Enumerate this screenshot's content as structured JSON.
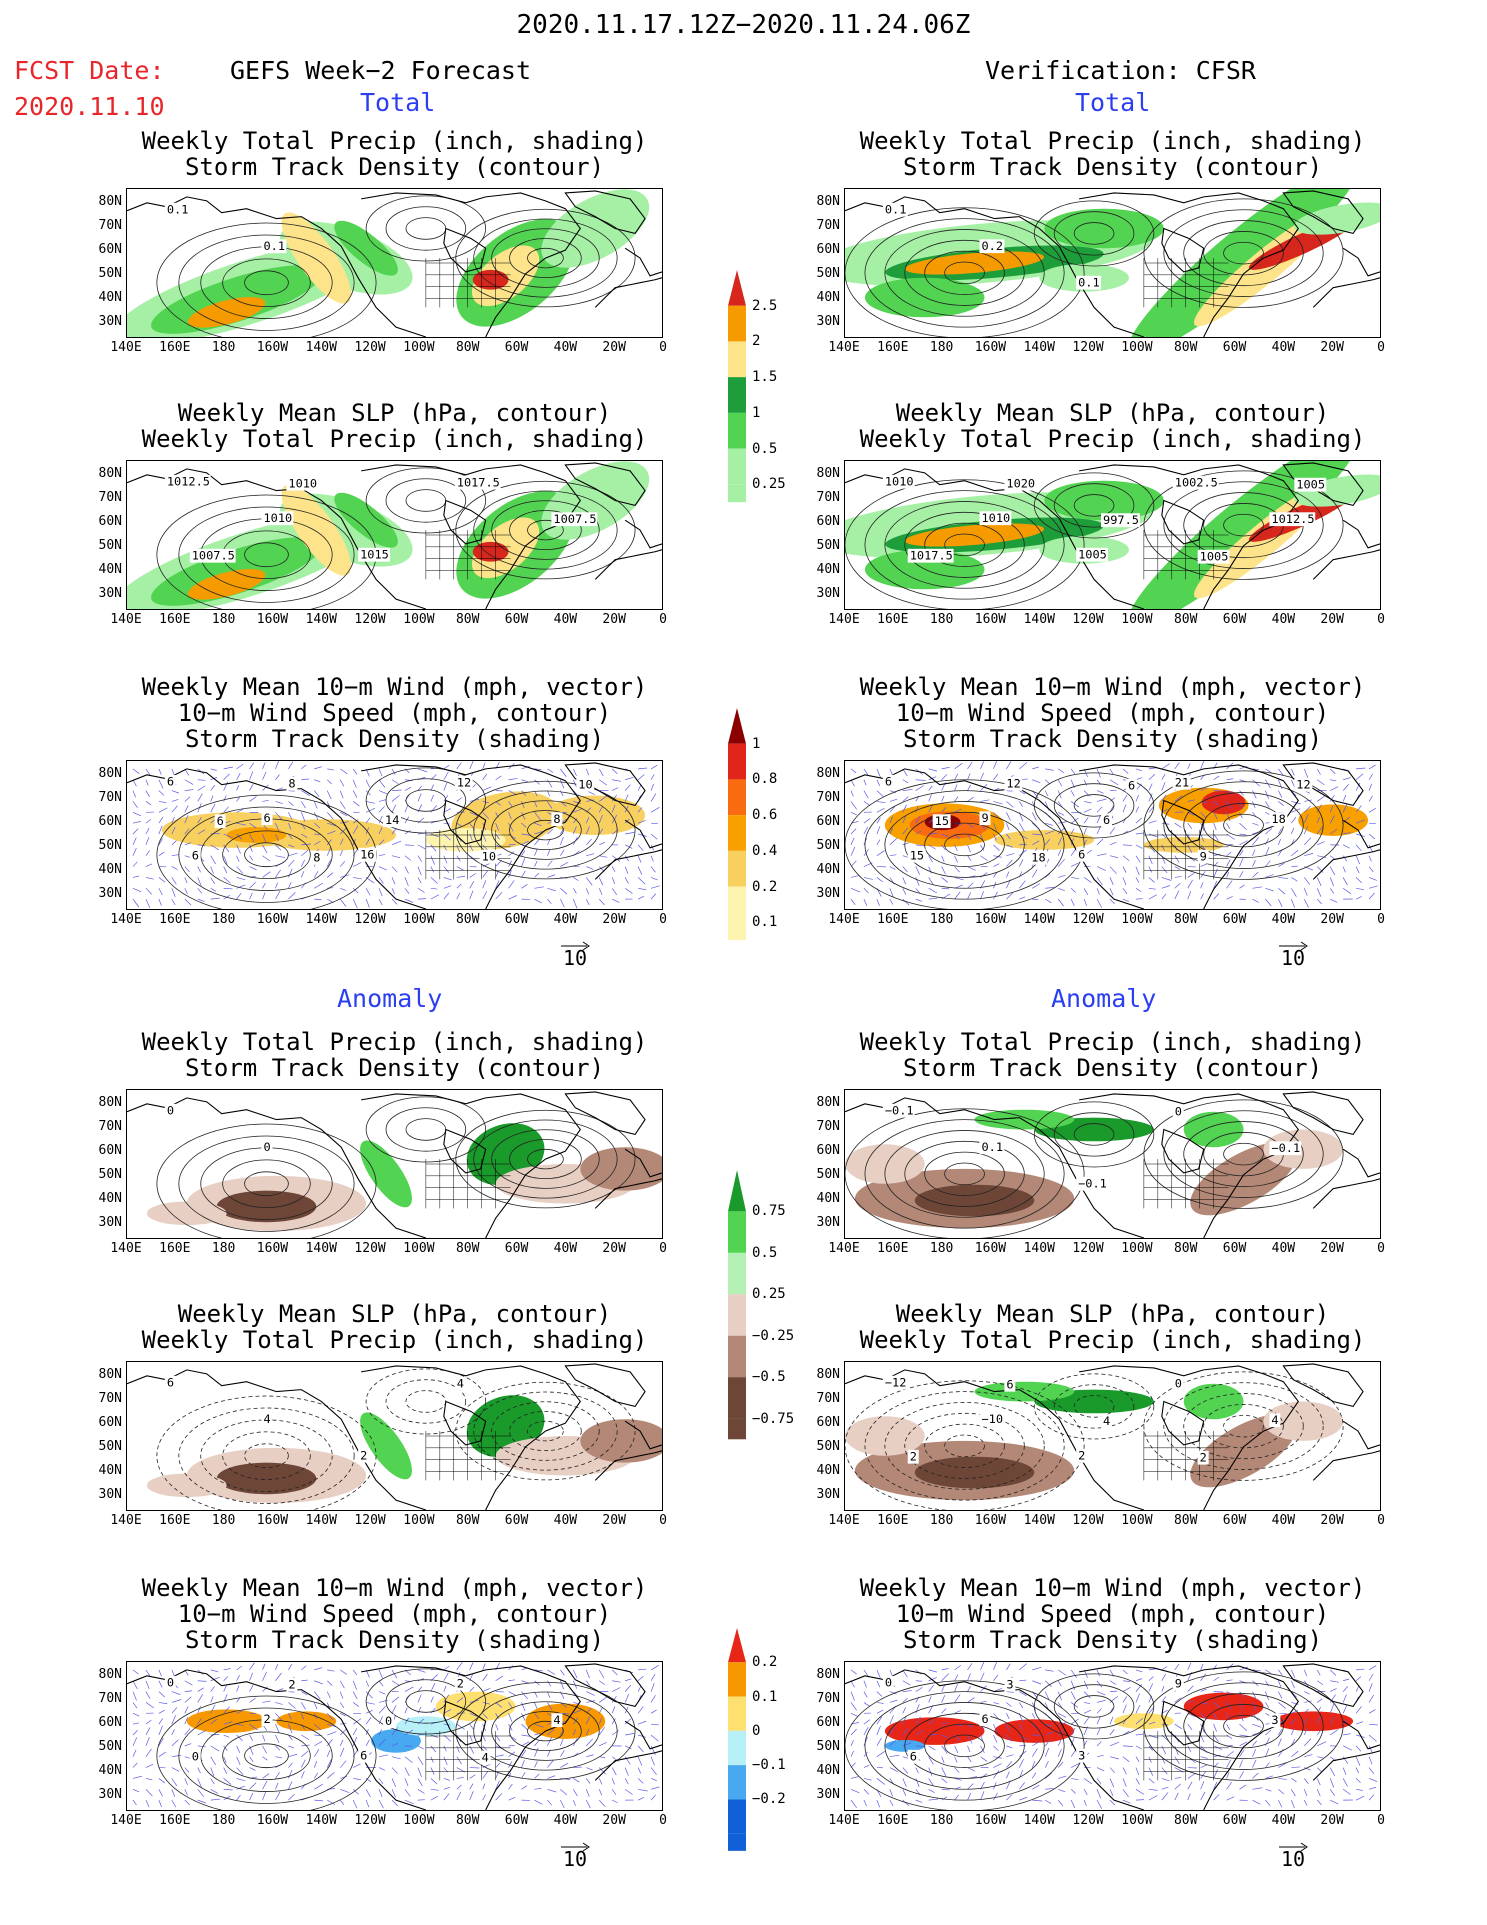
{
  "header": {
    "date_range": "2020.11.17.12Z−2020.11.24.06Z",
    "fcst_label": "FCST Date:",
    "fcst_date": "2020.11.10",
    "left_title": "GEFS Week−2 Forecast",
    "right_title": "Verification: CFSR",
    "total_label": "Total",
    "anomaly_label": "Anomaly"
  },
  "titles": {
    "precip_storm": [
      "Weekly Total Precip (inch, shading)",
      "Storm Track Density (contour)"
    ],
    "slp_precip": [
      "Weekly Mean SLP (hPa, contour)",
      "Weekly Total Precip (inch, shading)"
    ],
    "wind": [
      "Weekly Mean 10−m Wind (mph, vector)",
      "10−m Wind Speed (mph, contour)",
      "Storm Track Density (shading)"
    ]
  },
  "axes": {
    "lat_ticks": [
      "80N",
      "70N",
      "60N",
      "50N",
      "40N",
      "30N"
    ],
    "lon_ticks": [
      "140E",
      "160E",
      "180",
      "160W",
      "140W",
      "120W",
      "100W",
      "80W",
      "60W",
      "40W",
      "20W",
      "0"
    ],
    "vector_ref": "10"
  },
  "colorbars": {
    "total_precip": {
      "labels": [
        "2.5",
        "2",
        "1.5",
        "1",
        "0.5",
        "0.25"
      ],
      "colors": [
        "#d7261c",
        "#f59b00",
        "#fde38a",
        "#1e9e3a",
        "#52d452",
        "#a6f0a6"
      ]
    },
    "total_storm": {
      "labels": [
        "1",
        "0.8",
        "0.6",
        "0.4",
        "0.2",
        "0.1"
      ],
      "colors": [
        "#8b0000",
        "#e0261a",
        "#f86b10",
        "#f8a000",
        "#f8d060",
        "#fdf4b0"
      ]
    },
    "anom_precip": {
      "labels": [
        "0.75",
        "0.5",
        "0.25",
        "−0.25",
        "−0.5",
        "−0.75"
      ],
      "colors": [
        "#1a9a2a",
        "#52d452",
        "#b4f0b4",
        "#e8cfc4",
        "#b38877",
        "#6e4638"
      ]
    },
    "anom_storm": {
      "labels": [
        "0.2",
        "0.1",
        "0",
        "−0.1",
        "−0.2"
      ],
      "colors": [
        "#e82618",
        "#f89800",
        "#fde070",
        "#b8f0f8",
        "#48a8f0",
        "#1060d8"
      ]
    }
  },
  "contour_labels": {
    "p1_left": [
      "0.1",
      "0.1"
    ],
    "p1_right": [
      "0.1",
      "0.2",
      "0.1"
    ],
    "p2_left": [
      "1012.5",
      "1010",
      "1015",
      "1017.5",
      "1007.5",
      "1007.5",
      "1010"
    ],
    "p2_right": [
      "1010",
      "1010",
      "1005",
      "1002.5",
      "1012.5",
      "1017.5",
      "1020",
      "997.5",
      "1005",
      "1005"
    ],
    "p3_left": [
      "6",
      "6",
      "16",
      "12",
      "8",
      "6",
      "8",
      "14",
      "10",
      "10",
      "6",
      "8"
    ],
    "p3_right": [
      "6",
      "9",
      "6",
      "21",
      "18",
      "15",
      "12",
      "6",
      "9",
      "12",
      "15",
      "18",
      "6"
    ],
    "p4_left": [
      "0",
      "0"
    ],
    "p4_right": [
      "−0.1",
      "0.1",
      "−0.1",
      "0",
      "−0.1"
    ],
    "p5_left": [
      "6",
      "4",
      "2",
      "4"
    ],
    "p5_right": [
      "−12",
      "−10",
      "2",
      "0",
      "4",
      "2",
      "6",
      "4",
      "2"
    ],
    "p6_left": [
      "0",
      "2",
      "6",
      "2",
      "4",
      "0",
      "2",
      "0",
      "4"
    ],
    "p6_right": [
      "0",
      "6",
      "3",
      "9",
      "3",
      "6",
      "3"
    ]
  }
}
